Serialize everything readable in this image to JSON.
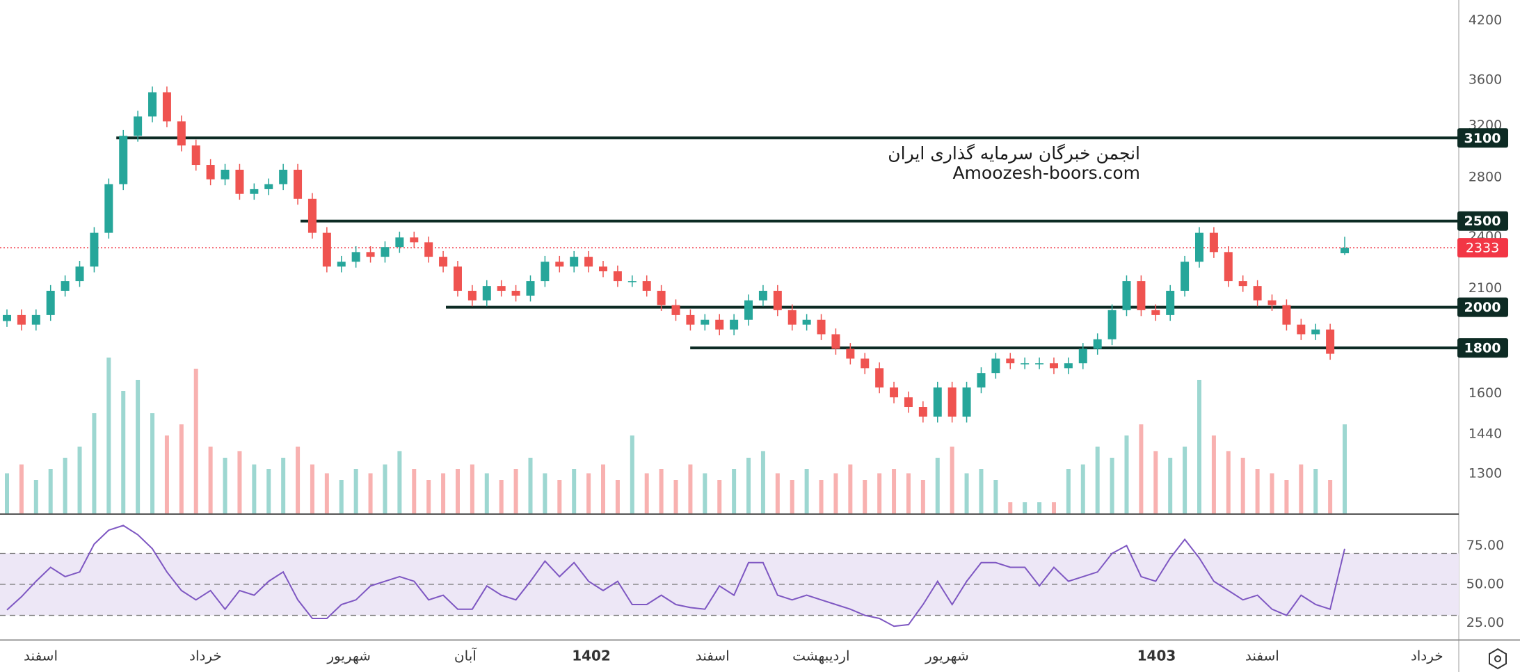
{
  "chart_data": {
    "type": "candlestick",
    "annotations": [
      "انجمن خبرگان سرمایه گذاری ایران",
      "Amoozesh-boors.com"
    ],
    "up_color": "#26a69a",
    "down_color": "#ef5350",
    "log_scale": true,
    "ylim": [
      1173,
      4430
    ],
    "yticks": [
      4200,
      3600,
      3200,
      2800,
      2400,
      2100,
      1600,
      1440,
      1300
    ],
    "open": [
      1930,
      1960,
      1912,
      1960,
      2087,
      2140,
      2222,
      2425,
      2750,
      3117,
      3277,
      3489,
      3236,
      3040,
      2891,
      2785,
      2855,
      2682,
      2715,
      2750,
      2855,
      2648,
      2425,
      2222,
      2250,
      2307,
      2279,
      2337,
      2396,
      2366,
      2279,
      2222,
      2087,
      2036,
      2113,
      2087,
      2061,
      2140,
      2250,
      2222,
      2279,
      2222,
      2195,
      2140,
      2140,
      2087,
      2011,
      1960,
      1912,
      1936,
      1888,
      1936,
      2036,
      2087,
      1985,
      1912,
      1936,
      1865,
      1796,
      1751,
      1708,
      1625,
      1584,
      1545,
      1507,
      1625,
      1507,
      1625,
      1687,
      1751,
      1730,
      1730,
      1730,
      1708,
      1730,
      1796,
      1841,
      1985,
      2140,
      1985,
      1960,
      2087,
      2250,
      2425,
      2307,
      2140,
      2113,
      2036,
      2011,
      1912,
      1865,
      1888,
      2300
    ],
    "high": [
      1989,
      1989,
      1989,
      2118,
      2172,
      2255,
      2461,
      2791,
      3164,
      3326,
      3541,
      3541,
      3285,
      3086,
      2934,
      2898,
      2898,
      2756,
      2791,
      2898,
      2898,
      2688,
      2461,
      2284,
      2342,
      2342,
      2372,
      2432,
      2432,
      2401,
      2313,
      2255,
      2118,
      2145,
      2145,
      2118,
      2172,
      2284,
      2284,
      2313,
      2313,
      2255,
      2228,
      2172,
      2172,
      2118,
      2041,
      1989,
      1965,
      1965,
      1965,
      2067,
      2118,
      2118,
      2015,
      1965,
      1965,
      1893,
      1823,
      1777,
      1734,
      1649,
      1608,
      1568,
      1649,
      1649,
      1649,
      1712,
      1777,
      1777,
      1756,
      1756,
      1756,
      1756,
      1823,
      1869,
      2015,
      2172,
      2172,
      2015,
      2118,
      2284,
      2461,
      2461,
      2342,
      2172,
      2145,
      2067,
      2041,
      1941,
      1916,
      1916,
      2400
    ],
    "low": [
      1901,
      1883,
      1883,
      1931,
      2056,
      2108,
      2189,
      2389,
      2709,
      3070,
      3228,
      3187,
      2994,
      2848,
      2743,
      2743,
      2642,
      2642,
      2674,
      2709,
      2608,
      2389,
      2189,
      2189,
      2216,
      2245,
      2245,
      2302,
      2331,
      2245,
      2189,
      2056,
      2005,
      2005,
      2056,
      2030,
      2030,
      2108,
      2189,
      2189,
      2189,
      2162,
      2108,
      2108,
      2056,
      1981,
      1931,
      1883,
      1883,
      1860,
      1860,
      1907,
      2005,
      1955,
      1883,
      1883,
      1837,
      1769,
      1725,
      1682,
      1601,
      1560,
      1522,
      1484,
      1484,
      1484,
      1484,
      1601,
      1662,
      1704,
      1704,
      1704,
      1682,
      1682,
      1704,
      1769,
      1813,
      1955,
      1955,
      1931,
      1931,
      2056,
      2216,
      2272,
      2108,
      2081,
      2005,
      1981,
      1883,
      1837,
      1837,
      1746,
      2290
    ],
    "close": [
      1960,
      1912,
      1960,
      2087,
      2140,
      2222,
      2425,
      2750,
      3117,
      3277,
      3489,
      3236,
      3040,
      2891,
      2785,
      2855,
      2682,
      2715,
      2750,
      2855,
      2648,
      2425,
      2222,
      2250,
      2307,
      2279,
      2337,
      2396,
      2366,
      2279,
      2222,
      2087,
      2036,
      2113,
      2087,
      2061,
      2140,
      2250,
      2222,
      2279,
      2222,
      2195,
      2140,
      2140,
      2087,
      2011,
      1960,
      1912,
      1936,
      1888,
      1936,
      2036,
      2087,
      1985,
      1912,
      1936,
      1865,
      1796,
      1751,
      1708,
      1625,
      1584,
      1545,
      1507,
      1625,
      1507,
      1625,
      1687,
      1751,
      1730,
      1730,
      1730,
      1708,
      1730,
      1796,
      1841,
      1985,
      2140,
      1985,
      1960,
      2087,
      2250,
      2425,
      2307,
      2140,
      2113,
      2036,
      2011,
      1912,
      1865,
      1888,
      1773,
      2333
    ],
    "volume": [
      18,
      22,
      15,
      20,
      25,
      30,
      45,
      70,
      55,
      60,
      45,
      35,
      40,
      65,
      30,
      25,
      28,
      22,
      20,
      25,
      30,
      22,
      18,
      15,
      20,
      18,
      22,
      28,
      20,
      15,
      18,
      20,
      22,
      18,
      15,
      20,
      25,
      18,
      15,
      20,
      18,
      22,
      15,
      35,
      18,
      20,
      15,
      22,
      18,
      15,
      20,
      25,
      28,
      18,
      15,
      20,
      15,
      18,
      22,
      15,
      18,
      20,
      18,
      15,
      25,
      30,
      18,
      20,
      15,
      5,
      5,
      5,
      5,
      20,
      22,
      30,
      25,
      35,
      40,
      28,
      25,
      30,
      60,
      35,
      28,
      25,
      20,
      18,
      15,
      22,
      20,
      15,
      40
    ],
    "levels": [
      3100,
      2500,
      2000,
      1800
    ],
    "level_color": "#0d2b24",
    "last_price": 2333,
    "last_price_color": "#f23645",
    "x_labels": [
      "اسفند",
      "خرداد",
      "شهریور",
      "آبان",
      "1402",
      "اسفند",
      "اردیبهشت",
      "شهریور",
      "1403",
      "اسفند",
      "خرداد"
    ],
    "rsi": {
      "color": "#7e57c2",
      "ylim": [
        15,
        94
      ],
      "yticks": [
        {
          "value": 75,
          "label": "75.00"
        },
        {
          "value": 50,
          "label": "50.00"
        },
        {
          "value": 25,
          "label": "25.00"
        }
      ],
      "bands": [
        30,
        50,
        70
      ],
      "values": [
        33.5,
        42,
        52,
        61,
        55,
        58,
        76,
        85,
        88,
        82,
        73,
        58,
        46,
        40,
        46,
        34,
        46,
        43,
        52,
        58,
        40,
        28,
        28,
        37,
        40,
        49,
        52,
        55,
        52,
        40,
        43,
        34,
        34,
        49,
        43,
        40,
        52,
        65,
        55,
        64,
        52,
        46,
        52,
        37,
        37,
        43,
        37,
        35,
        34,
        49,
        43,
        64,
        64,
        43,
        40,
        43,
        40,
        37,
        34,
        30,
        28,
        23,
        24,
        37,
        52,
        37,
        52,
        64,
        64,
        61,
        61,
        49,
        61,
        52,
        55,
        58,
        70,
        75,
        55,
        52,
        67,
        79,
        67,
        52,
        46,
        40,
        43,
        34,
        30,
        43,
        37,
        34,
        73
      ]
    }
  }
}
